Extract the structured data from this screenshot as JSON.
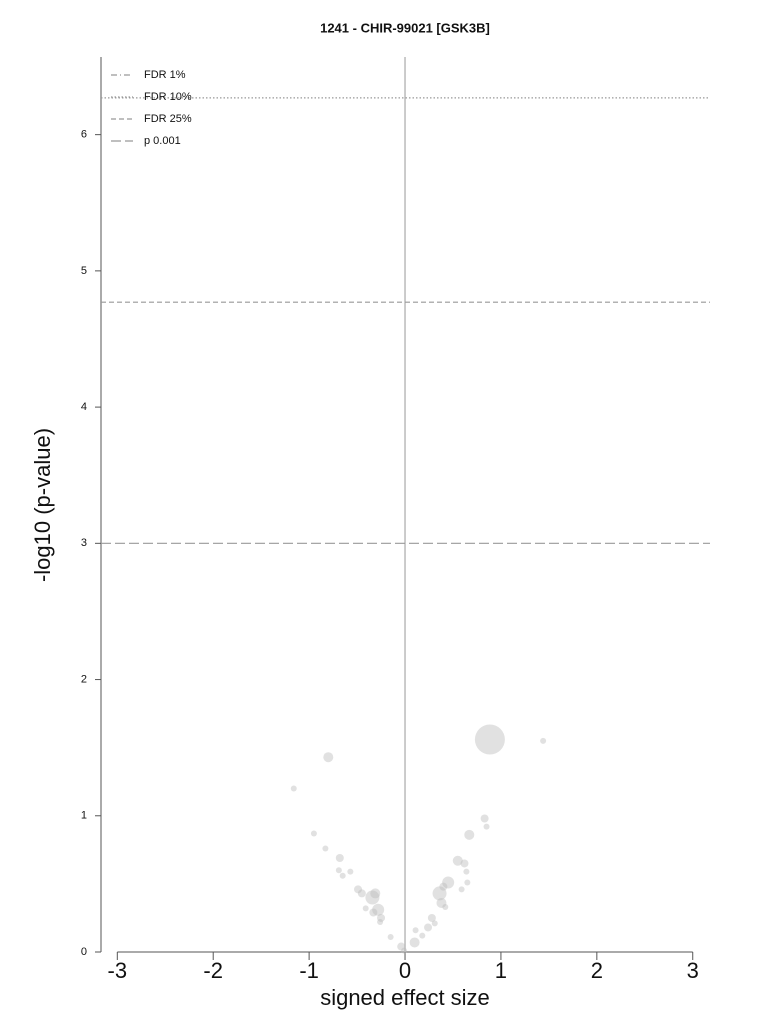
{
  "chart_data": {
    "type": "scatter",
    "title": "1241 - CHIR-99021 [GSK3B]",
    "x_label": "signed effect size",
    "y_label": "-log10 (p-value)",
    "xlim": [
      -3.17,
      3.18
    ],
    "ylim": [
      0,
      6.57
    ],
    "xticks": [
      -3,
      -2,
      -1,
      0,
      1,
      2,
      3
    ],
    "yticks": [
      0,
      1,
      2,
      3,
      4,
      5,
      6
    ],
    "vline": 0,
    "color": "#bdbdbd",
    "legend": "upper left",
    "thresholds": [
      {
        "name": "FDR 1%",
        "value": null,
        "dash": "6 3 1 3"
      },
      {
        "name": "FDR 10%",
        "value": 6.27,
        "dash": "1.5 2"
      },
      {
        "name": "FDR 25%",
        "value": 4.77,
        "dash": "5 3"
      },
      {
        "name": "p 0.001",
        "value": 3,
        "dash": "10 4"
      }
    ],
    "x": [
      0.885,
      1.44,
      -0.8,
      -1.16,
      -0.95,
      -0.83,
      -0.68,
      -0.69,
      -0.65,
      -0.57,
      -0.49,
      -0.45,
      -0.34,
      -0.31,
      -0.41,
      -0.28,
      -0.33,
      -0.25,
      -0.26,
      -0.15,
      -0.04,
      -0.01,
      0.1,
      0.11,
      0.18,
      0.24,
      0.28,
      0.31,
      0.36,
      0.4,
      0.45,
      0.38,
      0.42,
      0.55,
      0.62,
      0.64,
      0.65,
      0.59,
      0.67,
      0.83,
      0.85
    ],
    "y": [
      1.56,
      1.55,
      1.43,
      1.2,
      0.87,
      0.76,
      0.69,
      0.6,
      0.56,
      0.59,
      0.46,
      0.43,
      0.4,
      0.43,
      0.32,
      0.31,
      0.29,
      0.25,
      0.22,
      0.11,
      0.04,
      0.01,
      0.07,
      0.16,
      0.12,
      0.18,
      0.25,
      0.21,
      0.43,
      0.48,
      0.51,
      0.36,
      0.33,
      0.67,
      0.65,
      0.59,
      0.51,
      0.46,
      0.86,
      0.98,
      0.92
    ],
    "sizes": [
      15,
      3,
      5,
      3,
      3,
      3,
      4,
      3,
      3,
      3,
      4,
      4,
      7,
      5,
      3,
      6,
      4,
      4,
      3,
      3,
      4,
      3,
      5,
      3,
      3,
      4,
      4,
      3,
      7,
      4,
      6,
      5,
      3,
      5,
      4,
      3,
      3,
      3,
      5,
      4,
      3
    ]
  }
}
